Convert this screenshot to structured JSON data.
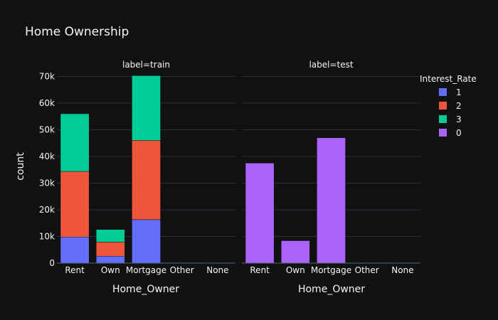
{
  "chart_data": {
    "type": "bar",
    "title": "Home Ownership",
    "barmode": "stack",
    "categories": [
      "Rent",
      "Own",
      "Mortgage",
      "Other",
      "None"
    ],
    "xlabel": "Home_Owner",
    "ylabel": "count",
    "ylim": [
      0,
      72000
    ],
    "yticks": [
      0,
      10000,
      20000,
      30000,
      40000,
      50000,
      60000,
      70000
    ],
    "ytick_labels": [
      "0",
      "10k",
      "20k",
      "30k",
      "40k",
      "50k",
      "60k",
      "70k"
    ],
    "grid": true,
    "legend": {
      "title": "Interest_Rate",
      "placement": "right",
      "items": [
        {
          "name": "1",
          "color": "#636efa"
        },
        {
          "name": "2",
          "color": "#ef553b"
        },
        {
          "name": "3",
          "color": "#00cc96"
        },
        {
          "name": "0",
          "color": "#ab63fa"
        }
      ]
    },
    "facets": [
      {
        "label": "label=train",
        "series": [
          {
            "name": "1",
            "color": "#636efa",
            "values": [
              9800,
              2600,
              16300,
              10,
              5
            ]
          },
          {
            "name": "2",
            "color": "#ef553b",
            "values": [
              24600,
              5300,
              29700,
              20,
              5
            ]
          },
          {
            "name": "3",
            "color": "#00cc96",
            "values": [
              21600,
              4700,
              24300,
              20,
              5
            ]
          }
        ]
      },
      {
        "label": "label=test",
        "series": [
          {
            "name": "0",
            "color": "#ab63fa",
            "values": [
              37500,
              8400,
              47000,
              30,
              10
            ]
          }
        ]
      }
    ]
  }
}
